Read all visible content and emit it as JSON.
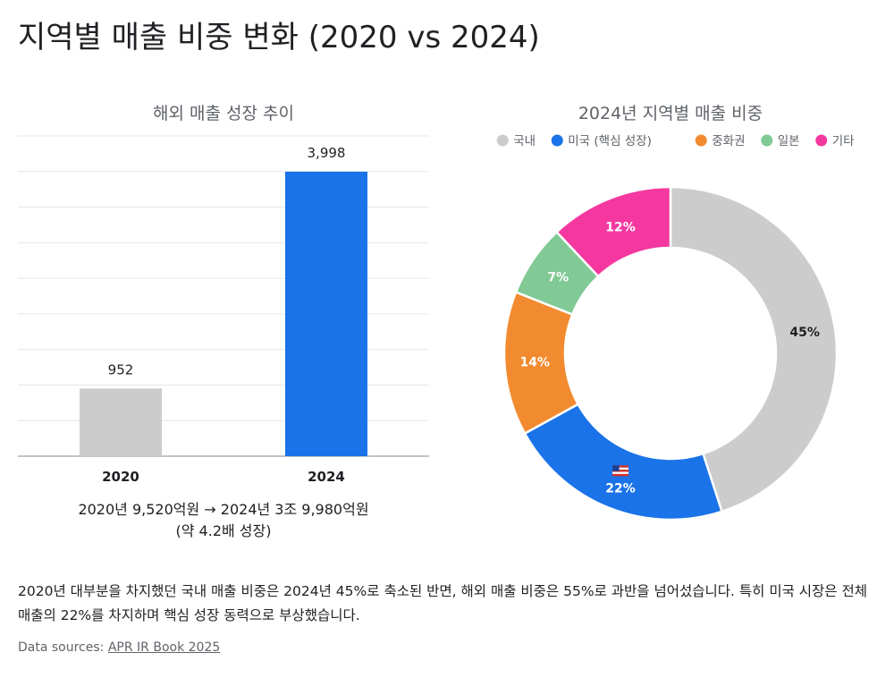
{
  "page": {
    "title": "지역별 매출 비중 변화 (2020 vs 2024)",
    "summary": "2020년 대부분을 차지했던 국내 매출 비중은 2024년 45%로 축소된 반면, 해외 매출 비중은 55%로 과반을 넘어섰습니다. 특히 미국 시장은 전체 매출의 22%를 차지하며 핵심 성장 동력으로 부상했습니다.",
    "sources_label": "Data sources:",
    "sources_link": "APR IR Book 2025"
  },
  "chart_data": [
    {
      "type": "bar",
      "title": "해외 매출 성장 추이",
      "categories": [
        "2020",
        "2024"
      ],
      "values": [
        952,
        3998
      ],
      "data_labels": [
        "952",
        "3,998"
      ],
      "colors": [
        "#cccccc",
        "#1a73e8"
      ],
      "ylim": [
        0,
        4500
      ],
      "grid": true,
      "caption_line1": "2020년 9,520억원 → 2024년 3조 9,980억원",
      "caption_line2": "(약 4.2배 성장)"
    },
    {
      "type": "pie",
      "title": "2024년 지역별 매출 비중",
      "donut": true,
      "legend_position": "top",
      "slices": [
        {
          "name": "국내",
          "value": 45,
          "label": "45%",
          "color": "#cccccc",
          "label_color": "#202124",
          "icon": ""
        },
        {
          "name": "미국 (핵심 성장)",
          "value": 22,
          "label": "22%",
          "color": "#1a73e8",
          "label_color": "#ffffff",
          "icon": "us-flag-icon"
        },
        {
          "name": "중화권",
          "value": 14,
          "label": "14%",
          "color": "#f28b30",
          "label_color": "#ffffff",
          "icon": ""
        },
        {
          "name": "일본",
          "value": 7,
          "label": "7%",
          "color": "#81c995",
          "label_color": "#ffffff",
          "icon": ""
        },
        {
          "name": "기타",
          "value": 12,
          "label": "12%",
          "color": "#f538a0",
          "label_color": "#ffffff",
          "icon": ""
        }
      ]
    }
  ]
}
